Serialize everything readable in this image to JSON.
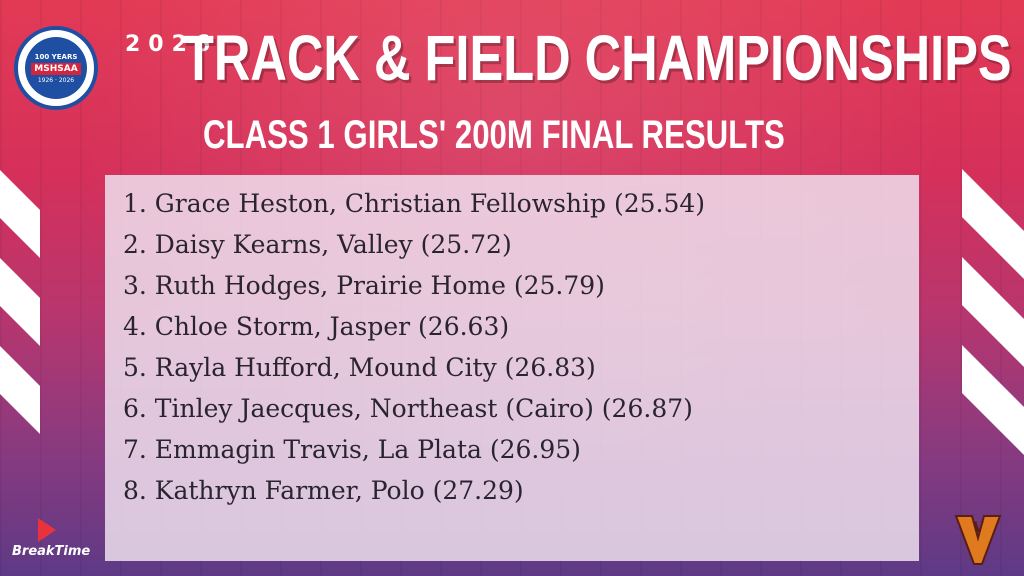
{
  "header": {
    "logo_top_text": "100 YEARS",
    "logo_text": "MSHSAA",
    "logo_years": "1926 · 2026",
    "year_text": "2026",
    "title": "TRACK & FIELD CHAMPIONSHIPS",
    "subtitle": "CLASS 1 GIRLS' 200M FINAL RESULTS"
  },
  "results": [
    "1. Grace Heston, Christian Fellowship (25.54)",
    "2. Daisy Kearns, Valley (25.72)",
    "3. Ruth Hodges, Prairie Home (25.79)",
    "4. Chloe Storm, Jasper (26.63)",
    "5. Rayla Hufford, Mound City (26.83)",
    "6. Tinley Jaecques, Northeast (Cairo) (26.87)",
    "7. Emmagin Travis, La Plata (26.95)",
    "8. Kathryn Farmer, Polo (27.29)"
  ],
  "footer": {
    "sponsor_label": "BreakTime",
    "school_logo_letter": "V"
  },
  "colors": {
    "accent_red": "#e23a55",
    "accent_purple": "#5e3a86",
    "logo_blue": "#1e4fa3",
    "school_orange": "#e07a1f"
  }
}
